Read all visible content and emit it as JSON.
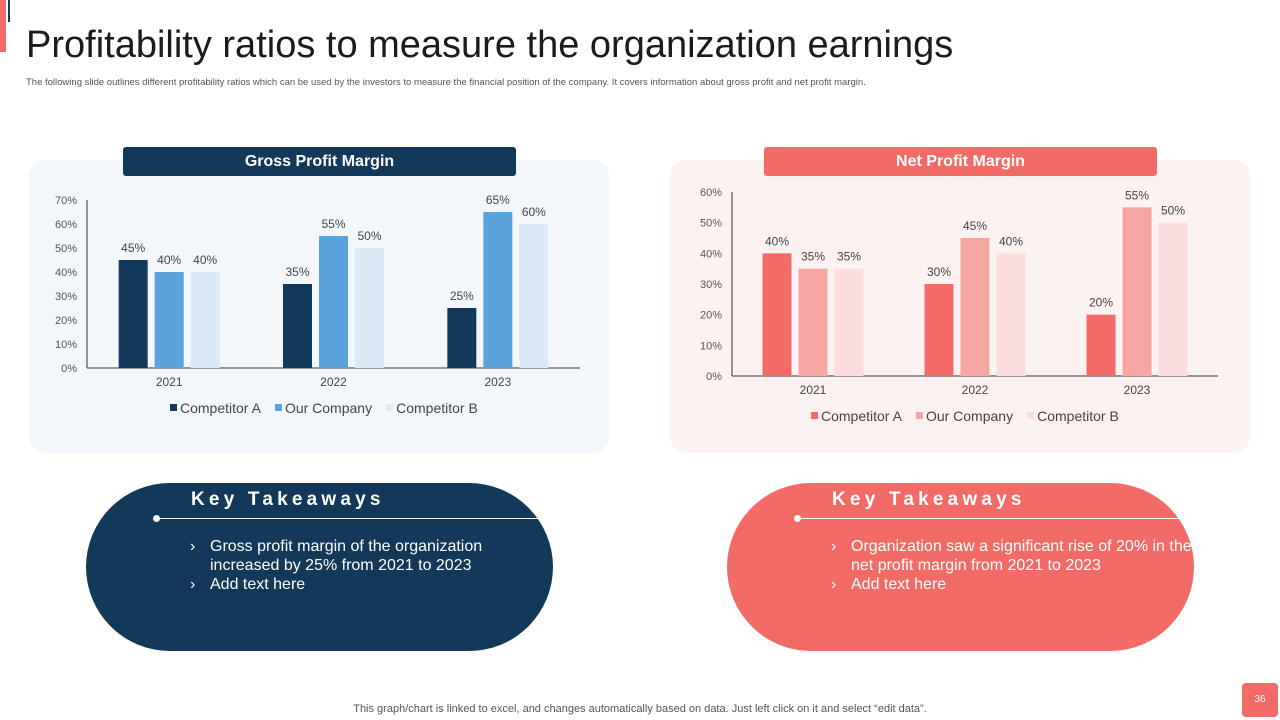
{
  "header": {
    "title": "Profitability ratios to measure the organization earnings",
    "subtitle": "The following slide outlines different profitability ratios which can be used by the investors to measure the financial position of the company. It covers information about gross profit and net profit margin."
  },
  "colors": {
    "navy": "#12385a",
    "blue": "#5ba3dc",
    "pale_blue": "#dceaf7",
    "coral": "#f26b66",
    "salmon": "#f7a5a3",
    "pale_pink": "#fcdcdc"
  },
  "chart_data": [
    {
      "type": "bar",
      "title": "Gross Profit Margin",
      "categories": [
        "2021",
        "2022",
        "2023"
      ],
      "series": [
        {
          "name": "Competitor A",
          "values": [
            45,
            35,
            25
          ],
          "color": "#12385a"
        },
        {
          "name": "Our Company",
          "values": [
            40,
            55,
            65
          ],
          "color": "#5ba3dc"
        },
        {
          "name": "Competitor B",
          "values": [
            40,
            50,
            60
          ],
          "color": "#dceaf7"
        }
      ],
      "ylim": [
        0,
        70
      ],
      "yticks": [
        "0%",
        "10%",
        "20%",
        "30%",
        "40%",
        "50%",
        "60%",
        "70%"
      ],
      "value_suffix": "%",
      "legend": "bottom",
      "grid": false
    },
    {
      "type": "bar",
      "title": "Net Profit Margin",
      "categories": [
        "2021",
        "2022",
        "2023"
      ],
      "series": [
        {
          "name": "Competitor A",
          "values": [
            40,
            30,
            20
          ],
          "color": "#f26b66"
        },
        {
          "name": "Our Company",
          "values": [
            35,
            45,
            55
          ],
          "color": "#f7a5a3"
        },
        {
          "name": "Competitor B",
          "values": [
            35,
            40,
            50
          ],
          "color": "#fcdcdc"
        }
      ],
      "ylim": [
        0,
        60
      ],
      "yticks": [
        "0%",
        "10%",
        "20%",
        "30%",
        "40%",
        "50%",
        "60%"
      ],
      "value_suffix": "%",
      "legend": "bottom",
      "grid": false
    }
  ],
  "takeaways": {
    "left": {
      "title": "Key Takeaways",
      "bullets": [
        "Gross profit margin of the organization increased by 25% from 2021 to 2023",
        "Add text here"
      ]
    },
    "right": {
      "title": "Key Takeaways",
      "bullets": [
        "Organization saw a significant rise of 20% in the net profit margin from 2021 to 2023",
        "Add text here"
      ]
    }
  },
  "footer": {
    "note": "This graph/chart is linked to excel, and changes automatically based on data. Just left click on it and select “edit data”.",
    "page_number": "36"
  }
}
